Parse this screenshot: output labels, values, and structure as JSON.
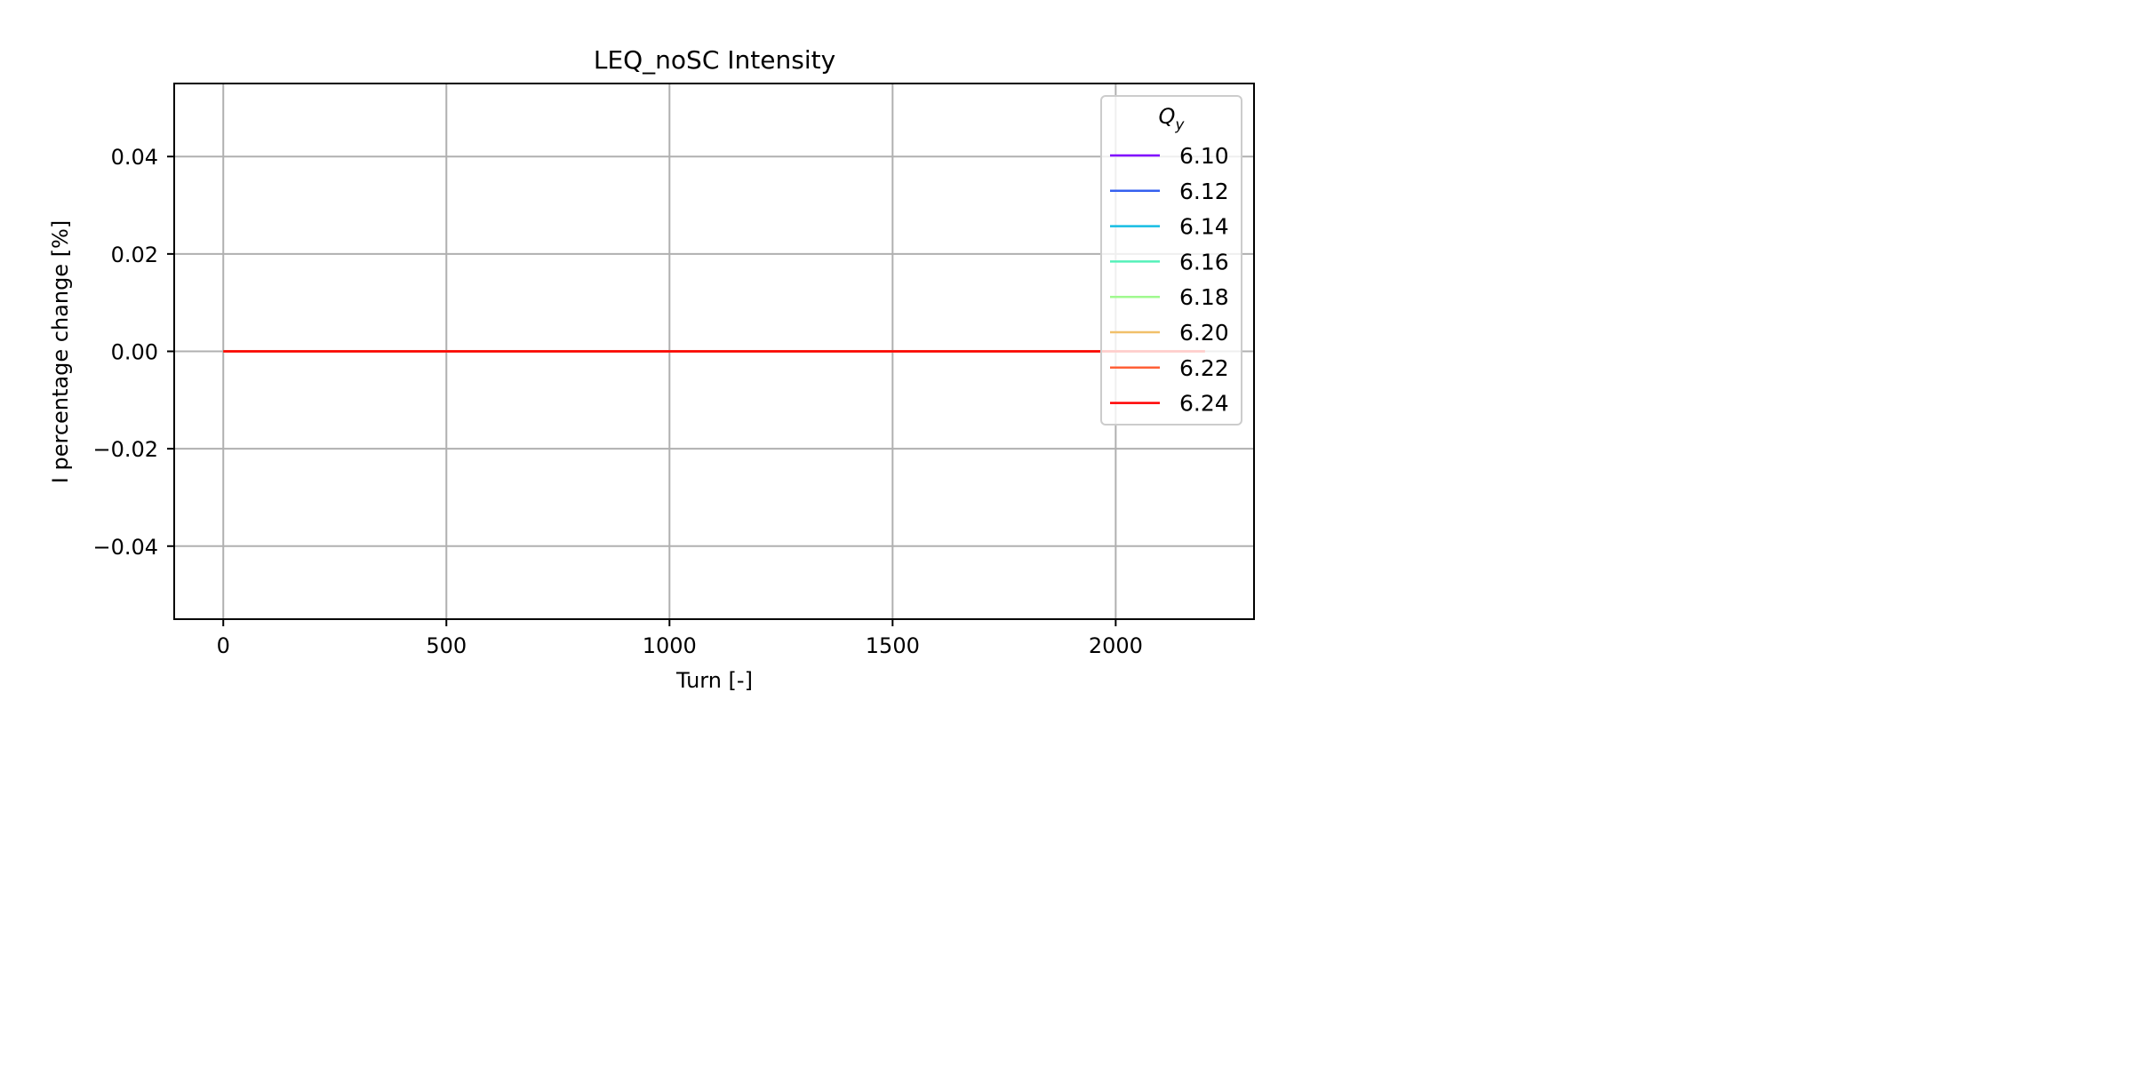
{
  "chart_data": {
    "type": "line",
    "title": "LEQ_noSC Intensity",
    "xlabel": "Turn [-]",
    "ylabel": "I percentage change [%]",
    "xlim": [
      -110,
      2310
    ],
    "ylim": [
      -0.055,
      0.055
    ],
    "xticks": [
      0,
      500,
      1000,
      1500,
      2000
    ],
    "xtick_labels": [
      "0",
      "500",
      "1000",
      "1500",
      "2000"
    ],
    "yticks": [
      0.04,
      0.02,
      0.0,
      -0.02,
      -0.04
    ],
    "ytick_labels": [
      "0.04",
      "0.02",
      "0.00",
      "−0.02",
      "−0.04"
    ],
    "grid": true,
    "legend": {
      "title_base": "Q",
      "title_sub": "y",
      "position": "top-right"
    },
    "x": [
      0,
      2200
    ],
    "series": [
      {
        "name": "6.10",
        "color": "#8000ff",
        "values": [
          0.0,
          0.0
        ]
      },
      {
        "name": "6.12",
        "color": "#3560ef",
        "values": [
          0.0,
          0.0
        ]
      },
      {
        "name": "6.14",
        "color": "#16bde3",
        "values": [
          0.0,
          0.0
        ]
      },
      {
        "name": "6.16",
        "color": "#55f1b9",
        "values": [
          0.0,
          0.0
        ]
      },
      {
        "name": "6.18",
        "color": "#a0f98f",
        "values": [
          0.0,
          0.0
        ]
      },
      {
        "name": "6.20",
        "color": "#f1c06a",
        "values": [
          0.0,
          0.0
        ]
      },
      {
        "name": "6.22",
        "color": "#ff6037",
        "values": [
          0.0,
          0.0
        ]
      },
      {
        "name": "6.24",
        "color": "#ff0000",
        "values": [
          0.0,
          0.0
        ]
      }
    ]
  }
}
